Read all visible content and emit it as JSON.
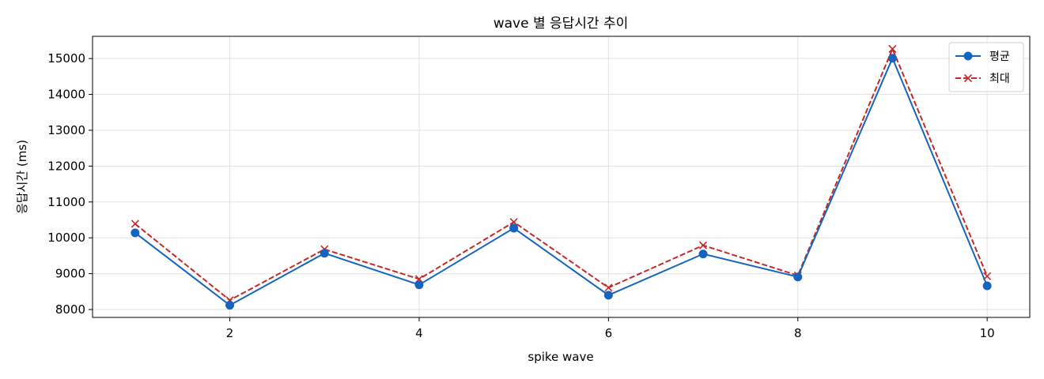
{
  "chart_data": {
    "type": "line",
    "title": "wave 별 응답시간 추이",
    "xlabel": "spike wave",
    "ylabel": "응답시간 (ms)",
    "x": [
      1,
      2,
      3,
      4,
      5,
      6,
      7,
      8,
      9,
      10
    ],
    "xticks": [
      2,
      4,
      6,
      8,
      10
    ],
    "yticks": [
      8000,
      9000,
      10000,
      11000,
      12000,
      13000,
      14000,
      15000
    ],
    "xlim": [
      0.55,
      10.45
    ],
    "ylim": [
      7780,
      15620
    ],
    "grid": true,
    "legend_position": "top-right",
    "series": [
      {
        "name": "평균",
        "values": [
          10140,
          8120,
          9570,
          8690,
          10270,
          8400,
          9550,
          8910,
          15010,
          8660
        ],
        "color": "#1565c0",
        "line_style": "solid",
        "marker": "circle"
      },
      {
        "name": "최대",
        "values": [
          10390,
          8260,
          9680,
          8850,
          10440,
          8610,
          9790,
          8950,
          15270,
          8930
        ],
        "color": "#c62828",
        "line_style": "dashed",
        "marker": "x"
      }
    ]
  }
}
